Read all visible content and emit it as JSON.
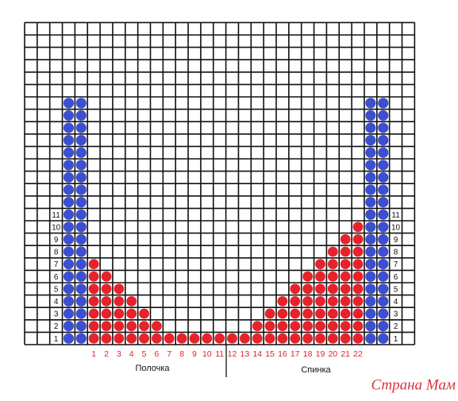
{
  "row_numbers": [
    1,
    2,
    3,
    4,
    5,
    6,
    7,
    8,
    9,
    10,
    11
  ],
  "column_numbers": [
    1,
    2,
    3,
    4,
    5,
    6,
    7,
    8,
    9,
    10,
    11,
    12,
    13,
    14,
    15,
    16,
    17,
    18,
    19,
    20,
    21,
    22
  ],
  "pattern": {
    "red_column_heights": [
      7,
      6,
      5,
      4,
      3,
      2,
      1,
      1,
      1,
      1,
      1,
      1,
      1,
      2,
      3,
      4,
      5,
      6,
      7,
      8,
      9,
      10
    ],
    "edge_column_height": 20
  },
  "labels": {
    "left": "Полочка",
    "right": "Спинка"
  },
  "watermark": "Страна Мам"
}
